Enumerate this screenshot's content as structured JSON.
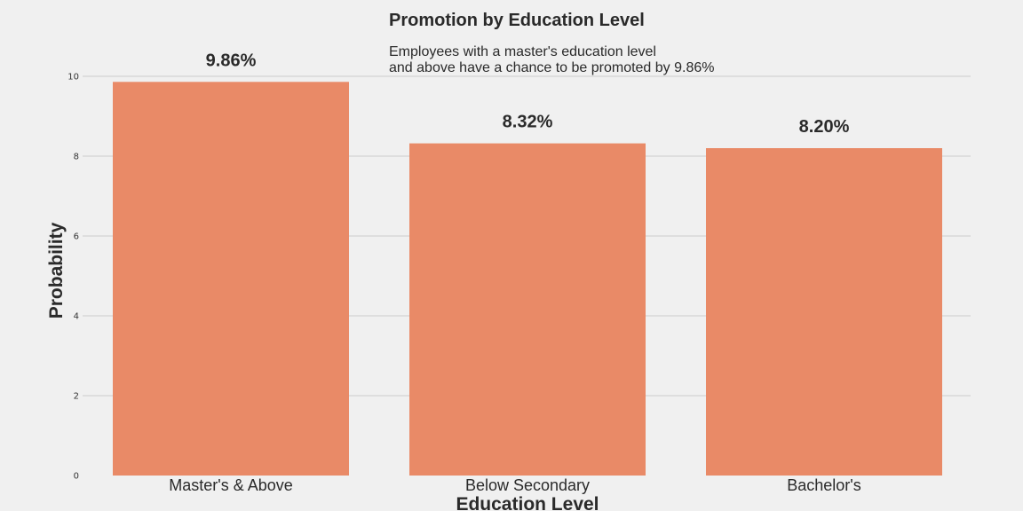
{
  "chart_data": {
    "type": "bar",
    "title": "Promotion by Education Level",
    "subtitle_lines": [
      "Employees with a master's education level",
      "and above have a chance to be promoted by 9.86%"
    ],
    "xlabel": "Education Level",
    "ylabel": "Probability",
    "categories": [
      "Master's & Above",
      "Below Secondary",
      "Bachelor's"
    ],
    "values": [
      9.86,
      8.32,
      8.2
    ],
    "data_labels": [
      "9.86%",
      "8.32%",
      "8.20%"
    ],
    "ylim": [
      0,
      10
    ],
    "yticks": [
      0,
      2,
      4,
      6,
      8,
      10
    ],
    "ytick_labels": [
      "0",
      "2",
      "4",
      "6",
      "8",
      "10"
    ],
    "grid": true,
    "bar_color": "#e98a67",
    "background_color": "#f0f0f0"
  }
}
